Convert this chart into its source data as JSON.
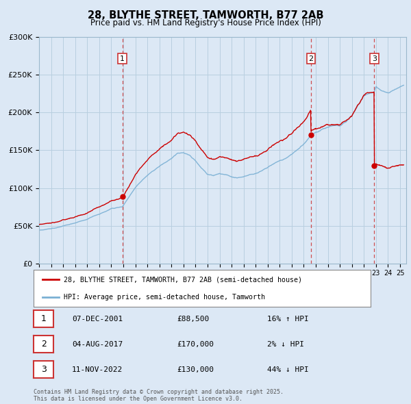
{
  "title": "28, BLYTHE STREET, TAMWORTH, B77 2AB",
  "subtitle": "Price paid vs. HM Land Registry's House Price Index (HPI)",
  "legend_line1": "28, BLYTHE STREET, TAMWORTH, B77 2AB (semi-detached house)",
  "legend_line2": "HPI: Average price, semi-detached house, Tamworth",
  "footer": "Contains HM Land Registry data © Crown copyright and database right 2025.\nThis data is licensed under the Open Government Licence v3.0.",
  "transactions": [
    {
      "num": 1,
      "date": "07-DEC-2001",
      "price": "£88,500",
      "hpi": "16% ↑ HPI",
      "x_year": 2001.93
    },
    {
      "num": 2,
      "date": "04-AUG-2017",
      "price": "£170,000",
      "hpi": "2% ↓ HPI",
      "x_year": 2017.59
    },
    {
      "num": 3,
      "date": "11-NOV-2022",
      "price": "£130,000",
      "hpi": "44% ↓ HPI",
      "x_year": 2022.86
    }
  ],
  "price_color": "#cc0000",
  "hpi_color": "#7ab0d4",
  "vline_color": "#cc3333",
  "ylim": [
    0,
    300000
  ],
  "xlim_start": 1995.0,
  "xlim_end": 2025.5,
  "background_color": "#dce8f5",
  "plot_bg_color": "#dce8f5",
  "grid_color": "#b8cfe0"
}
